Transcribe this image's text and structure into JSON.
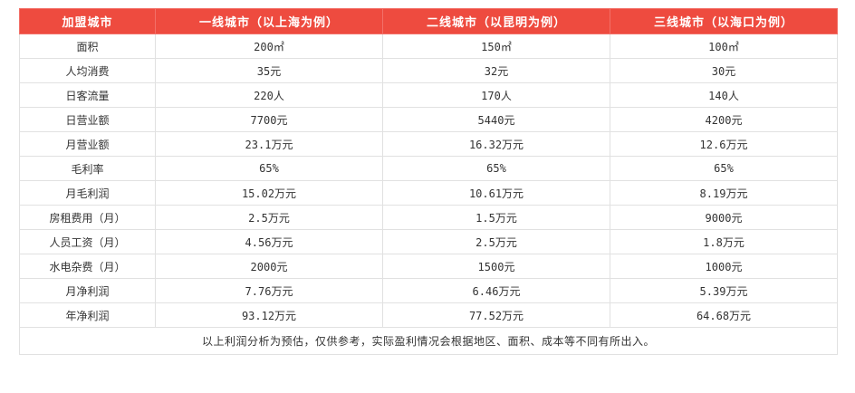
{
  "header": [
    "加盟城市",
    "一线城市（以上海为例）",
    "二线城市（以昆明为例）",
    "三线城市（以海口为例）"
  ],
  "rows": [
    [
      "面积",
      "200㎡",
      "150㎡",
      "100㎡"
    ],
    [
      "人均消费",
      "35元",
      "32元",
      "30元"
    ],
    [
      "日客流量",
      "220人",
      "170人",
      "140人"
    ],
    [
      "日营业额",
      "7700元",
      "5440元",
      "4200元"
    ],
    [
      "月营业额",
      "23.1万元",
      "16.32万元",
      "12.6万元"
    ],
    [
      "毛利率",
      "65%",
      "65%",
      "65%"
    ],
    [
      "月毛利润",
      "15.02万元",
      "10.61万元",
      "8.19万元"
    ],
    [
      "房租费用（月）",
      "2.5万元",
      "1.5万元",
      "9000元"
    ],
    [
      "人员工资（月）",
      "4.56万元",
      "2.5万元",
      "1.8万元"
    ],
    [
      "水电杂费（月）",
      "2000元",
      "1500元",
      "1000元"
    ],
    [
      "月净利润",
      "7.76万元",
      "6.46万元",
      "5.39万元"
    ],
    [
      "年净利润",
      "93.12万元",
      "77.52万元",
      "64.68万元"
    ]
  ],
  "footnote": "以上利润分析为预估，仅供参考，实际盈利情况会根据地区、面积、成本等不同有所出入。",
  "colors": {
    "header_bg": "#ee4b3f",
    "header_text": "#ffffff",
    "border": "#e1e1e1",
    "text": "#333333"
  }
}
